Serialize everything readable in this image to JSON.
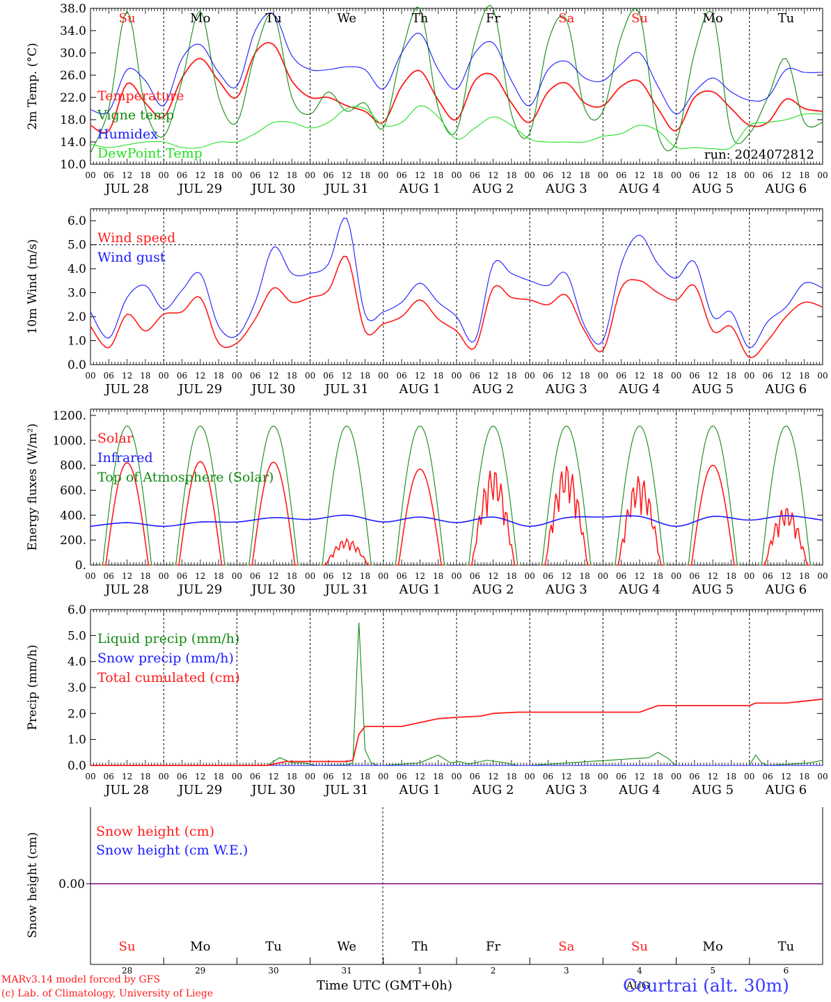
{
  "colors": {
    "red": "#ff1a1a",
    "green": "#128a12",
    "blue": "#1a1aff",
    "light_green": "#22e022",
    "purple": "#800080"
  },
  "days": [
    "Su",
    "Mo",
    "Tu",
    "We",
    "Th",
    "Fr",
    "Sa",
    "Su",
    "Mo",
    "Tu"
  ],
  "weekend_days": [
    0,
    6,
    7
  ],
  "dates": [
    "JUL 28",
    "JUL 29",
    "JUL 30",
    "JUL 31",
    "AUG  1",
    "AUG  2",
    "AUG  3",
    "AUG  4",
    "AUG  5",
    "AUG  6"
  ],
  "hour_labels": [
    "00",
    "06",
    "12",
    "18"
  ],
  "run_label": "run: 2024072812",
  "footer": {
    "model": "MARv3.14 model forced by GFS",
    "credit": "(c) Lab. of Climatology, University of Liege",
    "xlabel": "Time UTC (GMT+0h)",
    "station": "Courtrai (alt. 30m)",
    "month_overlay": "AUG",
    "snow_dates": [
      "28",
      "29",
      "30",
      "31",
      "1",
      "2",
      "3",
      "4",
      "5",
      "6"
    ]
  },
  "chart_data": [
    {
      "id": "temperature",
      "type": "line",
      "ylabel": "2m Temp. (°C)",
      "ylim": [
        10,
        38
      ],
      "ytick_labels": [
        "10.0",
        "14.0",
        "18.0",
        "22.0",
        "26.0",
        "30.0",
        "34.0",
        "38.0"
      ],
      "dashed_ref": null,
      "x_unit": "hours since JUL 28 00 UTC",
      "series": [
        {
          "name": "Temperature",
          "color": "red",
          "x": [
            0,
            6,
            12,
            18,
            24,
            30,
            36,
            42,
            48,
            54,
            60,
            66,
            72,
            78,
            84,
            90,
            96,
            102,
            108,
            114,
            120,
            126,
            132,
            138,
            144,
            150,
            156,
            162,
            168,
            174,
            180,
            186,
            192,
            198,
            204,
            210,
            216,
            222,
            228,
            234,
            240
          ],
          "y": [
            17,
            16,
            24.5,
            21,
            18.5,
            25.5,
            29,
            25,
            22,
            30,
            31.5,
            25,
            22,
            22,
            20.5,
            19.5,
            17.5,
            24,
            26.8,
            21.5,
            18,
            25,
            26,
            21,
            17.5,
            23,
            24.6,
            21,
            20.5,
            24,
            24.9,
            20,
            16,
            22,
            23,
            20,
            17,
            17.5,
            21.7,
            20,
            19.5
          ]
        },
        {
          "name": "Vigne temp",
          "color": "green",
          "x": [
            0,
            6,
            12,
            18,
            24,
            30,
            36,
            42,
            48,
            54,
            60,
            66,
            72,
            78,
            84,
            90,
            96,
            102,
            108,
            114,
            120,
            126,
            132,
            138,
            144,
            150,
            156,
            162,
            168,
            174,
            180,
            186,
            192,
            198,
            204,
            210,
            216,
            222,
            228,
            234,
            240
          ],
          "y": [
            12,
            20,
            37.5,
            20,
            15,
            25,
            37.5,
            22,
            17.5,
            30,
            37,
            22,
            19,
            23,
            19.5,
            21,
            16.5,
            30,
            38,
            20,
            16,
            32,
            38,
            19,
            15.5,
            32,
            36,
            20,
            19.5,
            33,
            37,
            15.5,
            14,
            30,
            37,
            15.5,
            15.5,
            22,
            29,
            17.5,
            17.5
          ]
        },
        {
          "name": "Humidex",
          "color": "blue",
          "x": [
            0,
            6,
            12,
            18,
            24,
            30,
            36,
            42,
            48,
            54,
            60,
            66,
            72,
            78,
            84,
            90,
            96,
            102,
            108,
            114,
            120,
            126,
            132,
            138,
            144,
            150,
            156,
            162,
            168,
            174,
            180,
            186,
            192,
            198,
            204,
            210,
            216,
            222,
            228,
            234,
            240
          ],
          "y": [
            19.8,
            19.5,
            27,
            25,
            20.5,
            29,
            31.5,
            26.5,
            24,
            34,
            37,
            29.5,
            27,
            27,
            27.5,
            27,
            23.5,
            30,
            33.5,
            27,
            23.5,
            30,
            31.8,
            25,
            20.5,
            27,
            28.5,
            25.5,
            25,
            28,
            30,
            24,
            19,
            23,
            25.5,
            23,
            21.5,
            22,
            27,
            26.5,
            26.5
          ]
        },
        {
          "name": "DewPoint Temp",
          "color": "light_green",
          "x": [
            0,
            6,
            12,
            18,
            24,
            30,
            36,
            42,
            48,
            54,
            60,
            66,
            72,
            78,
            84,
            90,
            96,
            102,
            108,
            114,
            120,
            126,
            132,
            138,
            144,
            150,
            156,
            162,
            168,
            174,
            180,
            186,
            192,
            198,
            204,
            210,
            216,
            222,
            228,
            234,
            240
          ],
          "y": [
            13.6,
            13,
            13.5,
            14,
            14,
            13,
            13,
            14,
            14,
            15.5,
            17.5,
            17.5,
            16.5,
            17.5,
            20,
            20,
            17,
            17.5,
            20.5,
            18.5,
            14.5,
            16.5,
            18.5,
            17,
            14.5,
            14,
            14,
            14,
            15,
            15.5,
            17,
            16,
            13,
            13,
            12.8,
            13,
            17,
            17.5,
            18,
            19,
            19
          ]
        }
      ]
    },
    {
      "id": "wind",
      "type": "line",
      "ylabel": "10m Wind (m/s)",
      "ylim": [
        0,
        6.5
      ],
      "ytick_labels": [
        "0.0",
        "1.0",
        "2.0",
        "3.0",
        "4.0",
        "5.0",
        "6.0"
      ],
      "dashed_ref": 5.0,
      "x_unit": "hours since JUL 28 00 UTC",
      "series": [
        {
          "name": "Wind speed",
          "color": "red",
          "x": [
            0,
            6,
            12,
            18,
            24,
            30,
            36,
            42,
            48,
            54,
            60,
            66,
            72,
            78,
            84,
            90,
            96,
            102,
            108,
            114,
            120,
            126,
            132,
            138,
            144,
            150,
            156,
            162,
            168,
            174,
            180,
            186,
            192,
            198,
            204,
            210,
            216,
            222,
            228,
            234,
            240
          ],
          "y": [
            1.6,
            0.7,
            2.1,
            1.4,
            2.1,
            2.2,
            2.8,
            0.9,
            0.9,
            1.9,
            3.2,
            2.6,
            2.8,
            3.1,
            4.5,
            1.4,
            1.7,
            2.0,
            2.7,
            1.9,
            1.4,
            0.7,
            3.2,
            2.8,
            2.7,
            2.5,
            2.9,
            1.4,
            0.6,
            3.2,
            3.5,
            3.0,
            2.7,
            3.3,
            1.4,
            1.6,
            0.3,
            1.0,
            2.0,
            2.6,
            2.4
          ]
        },
        {
          "name": "Wind gust",
          "color": "blue",
          "x": [
            0,
            6,
            12,
            18,
            24,
            30,
            36,
            42,
            48,
            54,
            60,
            66,
            72,
            78,
            84,
            90,
            96,
            102,
            108,
            114,
            120,
            126,
            132,
            138,
            144,
            150,
            156,
            162,
            168,
            174,
            180,
            186,
            192,
            198,
            204,
            210,
            216,
            222,
            228,
            234,
            240
          ],
          "y": [
            2.2,
            1.1,
            2.8,
            3.3,
            2.3,
            3.1,
            3.8,
            1.6,
            1.2,
            2.6,
            4.9,
            3.8,
            3.8,
            4.2,
            6.1,
            2.1,
            2.2,
            2.6,
            3.4,
            2.6,
            2.0,
            1.0,
            4.2,
            3.8,
            3.5,
            3.3,
            3.8,
            1.6,
            1.0,
            4.2,
            5.4,
            4.2,
            3.6,
            4.3,
            2.0,
            2.2,
            0.7,
            1.8,
            2.4,
            3.4,
            3.2
          ]
        }
      ]
    },
    {
      "id": "energy",
      "type": "line",
      "ylabel": "Energy fluxes (W/m²)",
      "ylim": [
        0,
        1250
      ],
      "ytick_labels": [
        "0.",
        "200.",
        "400.",
        "600.",
        "800.",
        "1000.",
        "1200."
      ],
      "dashed_ref": null,
      "x_unit": "hours since JUL 28 00 UTC",
      "series": [
        {
          "name": "Solar",
          "color": "red",
          "daily_peaks": [
            820,
            830,
            825,
            210,
            770,
            780,
            810,
            720,
            800,
            470
          ],
          "broken_days": [
            3,
            5,
            6,
            7,
            9
          ]
        },
        {
          "name": "Infrared",
          "color": "blue",
          "x": [
            0,
            12,
            24,
            36,
            48,
            60,
            72,
            84,
            96,
            108,
            120,
            132,
            144,
            156,
            168,
            180,
            192,
            204,
            216,
            228,
            240
          ],
          "y": [
            310,
            340,
            310,
            345,
            345,
            380,
            365,
            400,
            345,
            385,
            340,
            385,
            310,
            380,
            385,
            390,
            310,
            390,
            360,
            395,
            360
          ]
        },
        {
          "name": "Top of Atmosphere (Solar)",
          "color": "green",
          "daily_peak": 1115
        }
      ]
    },
    {
      "id": "precip",
      "type": "line",
      "ylabel": "Precip (mm/h)",
      "ylim": [
        0,
        6
      ],
      "ytick_labels": [
        "0.0",
        "1.0",
        "2.0",
        "3.0",
        "4.0",
        "5.0",
        "6.0"
      ],
      "dashed_ref": null,
      "x_unit": "hours since JUL 28 00 UTC",
      "series": [
        {
          "name": "Liquid precip (mm/h)",
          "color": "green",
          "x": [
            0,
            58,
            62,
            66,
            70,
            74,
            84,
            86,
            88,
            90,
            92,
            94,
            96,
            108,
            114,
            118,
            121,
            124,
            130,
            136,
            140,
            144,
            183,
            186,
            189,
            192,
            216,
            218,
            220,
            222,
            236,
            240
          ],
          "y": [
            0,
            0,
            0.3,
            0.1,
            0.1,
            0,
            0.02,
            0.1,
            5.5,
            0.6,
            0.1,
            0,
            0,
            0.1,
            0.4,
            0.1,
            0.15,
            0.05,
            0.2,
            0.1,
            0,
            0,
            0.3,
            0.5,
            0.3,
            0,
            0,
            0.4,
            0.1,
            0,
            0.1,
            0.2
          ]
        },
        {
          "name": "Snow precip (mm/h)",
          "color": "blue",
          "x": [
            0,
            240
          ],
          "y": [
            0,
            0
          ]
        },
        {
          "name": "Total cumulated (cm)",
          "color": "red",
          "x": [
            0,
            58,
            64,
            84,
            86,
            88,
            90,
            96,
            102,
            106,
            110,
            114,
            120,
            128,
            132,
            140,
            168,
            180,
            186,
            216,
            218,
            228,
            240
          ],
          "y": [
            0,
            0,
            0.15,
            0.15,
            0.2,
            1.2,
            1.5,
            1.5,
            1.5,
            1.6,
            1.7,
            1.8,
            1.85,
            1.9,
            2.0,
            2.05,
            2.05,
            2.05,
            2.3,
            2.3,
            2.4,
            2.4,
            2.55
          ]
        }
      ]
    },
    {
      "id": "snow",
      "type": "line",
      "ylabel": "Snow height (cm)",
      "ytick_labels": [
        "0.00"
      ],
      "series": [
        {
          "name": "Snow height (cm)",
          "color": "red",
          "value": 0
        },
        {
          "name": "Snow height (cm W.E.)",
          "color": "blue",
          "value": 0
        }
      ]
    }
  ]
}
